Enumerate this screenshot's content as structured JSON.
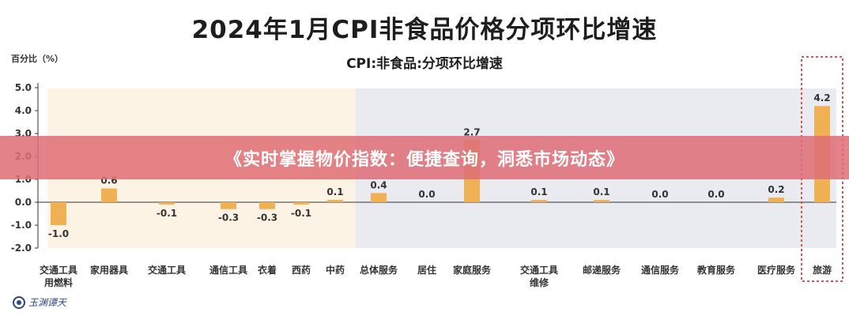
{
  "chart_data": {
    "type": "bar",
    "title": "2024年1月CPI非食品价格分项环比增速",
    "subtitle": "CPI:非食品:分项环比增速",
    "ylabel": "百分比（%）",
    "ylim": [
      -2.0,
      5.0
    ],
    "yticks": [
      "5.0",
      "4.0",
      "3.0",
      "2.0",
      "1.0",
      "0.0",
      "-1.0",
      "-2.0"
    ],
    "categories": [
      [
        "交通工具",
        "用燃料"
      ],
      [
        "家用器具"
      ],
      [
        "交通工具"
      ],
      [
        "通信工具"
      ],
      [
        "衣着"
      ],
      [
        "西药"
      ],
      [
        "中药"
      ],
      [
        "总体服务"
      ],
      [
        "居住"
      ],
      [
        "家庭服务"
      ],
      [
        "交通工具",
        "维修"
      ],
      [
        "邮递服务"
      ],
      [
        "通信服务"
      ],
      [
        "教育服务"
      ],
      [
        "医疗服务"
      ],
      [
        "旅游"
      ]
    ],
    "values": [
      -1.0,
      0.6,
      -0.1,
      -0.3,
      -0.3,
      -0.1,
      0.1,
      0.4,
      0.0,
      2.7,
      0.1,
      0.1,
      0.0,
      0.0,
      0.2,
      4.2
    ],
    "value_labels": [
      "-1.0",
      "0.6",
      "-0.1",
      "-0.3",
      "-0.3",
      "-0.1",
      "0.1",
      "0.4",
      "0.0",
      "2.7",
      "0.1",
      "0.1",
      "0.0",
      "0.0",
      "0.2",
      "4.2"
    ],
    "groups": [
      "goods",
      "goods",
      "goods",
      "goods",
      "goods",
      "goods",
      "goods",
      "services",
      "services",
      "services",
      "services",
      "services",
      "services",
      "services",
      "services",
      "services"
    ],
    "highlight_category": "旅游",
    "grid": false,
    "colors": {
      "bar": "#f0b054",
      "goods_bg": "#fdf3e4",
      "services_bg": "#e9ebf1",
      "highlight_box": "#d9534f"
    }
  },
  "banner": {
    "text": "《实时掌握物价指数：便捷查询，洞悉市场动态》"
  },
  "watermark": {
    "text": "玉渊谭天",
    "icon": "logo-mark-icon"
  }
}
